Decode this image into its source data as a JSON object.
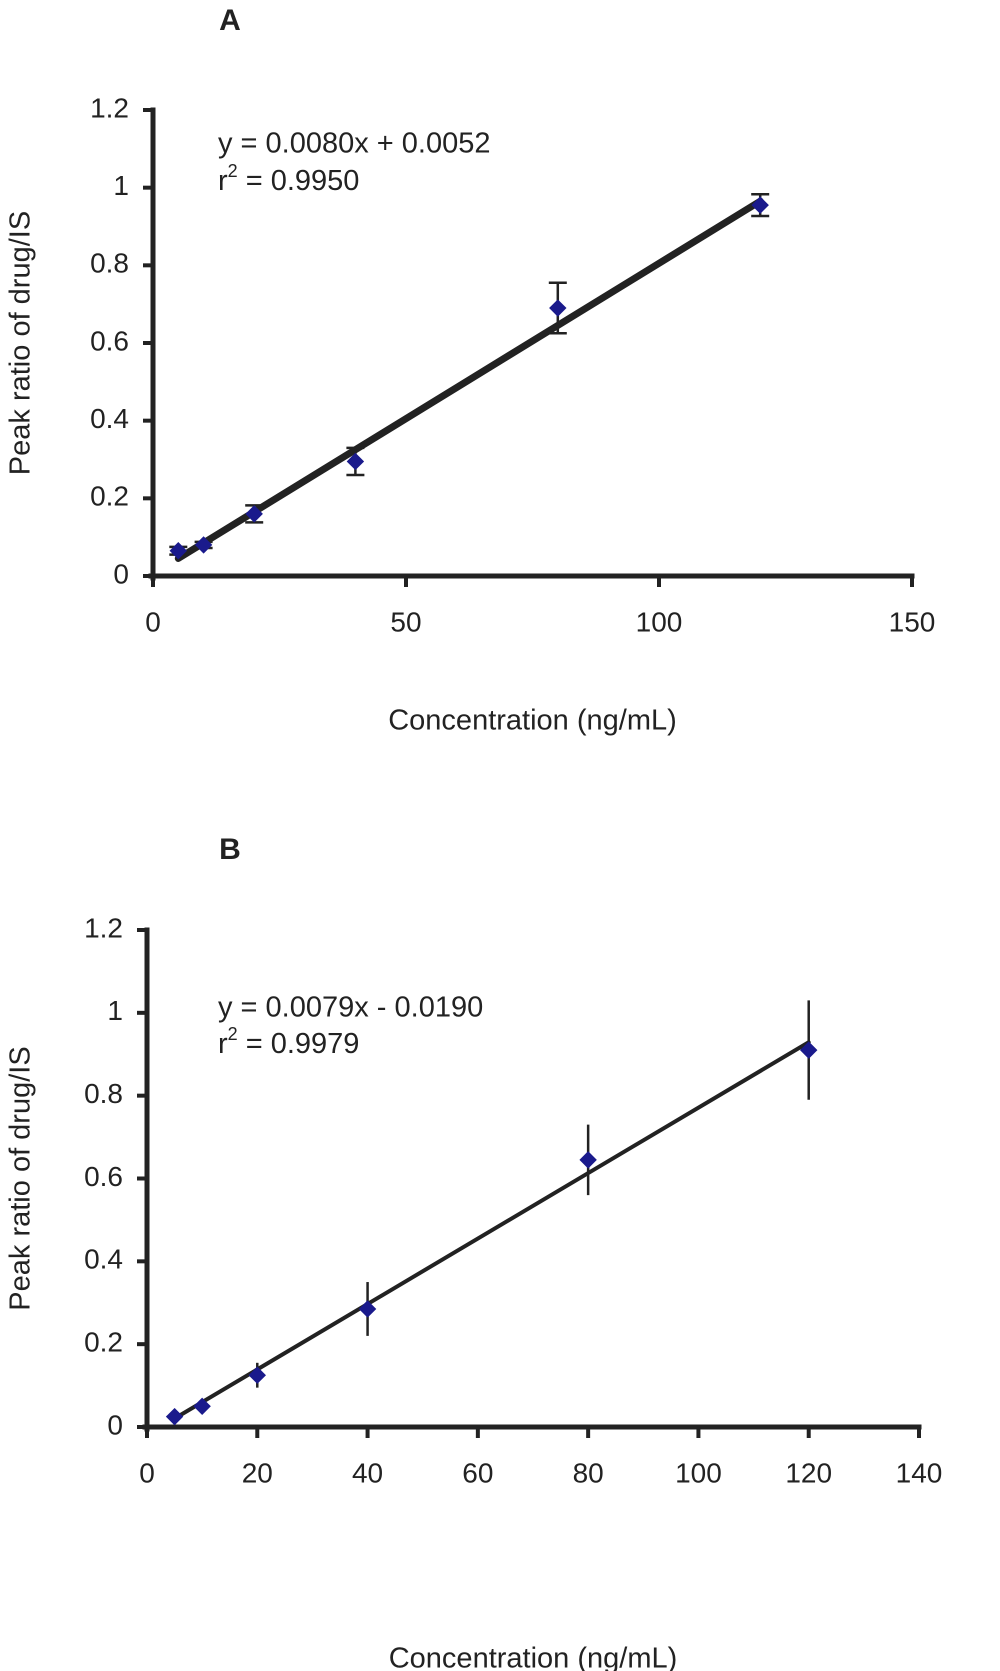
{
  "figure": {
    "background": "#ffffff",
    "axis_color": "#222222",
    "line_color": "#222222",
    "marker_color": "#1a1a8c"
  },
  "chart_data": [
    {
      "type": "scatter",
      "panel_label": "A",
      "title": "",
      "xlabel": "Concentration (ng/mL)",
      "ylabel": "Peak ratio of drug/IS",
      "xlim": [
        0,
        150
      ],
      "ylim": [
        0,
        1.2
      ],
      "x_ticks": [
        0,
        50,
        100,
        150
      ],
      "y_ticks": [
        0,
        0.2,
        0.4,
        0.6,
        0.8,
        1,
        1.2
      ],
      "x_tick_labels": [
        "0",
        "50",
        "100",
        "150"
      ],
      "y_tick_labels": [
        "0",
        "0.2",
        "0.4",
        "0.6",
        "0.8",
        "1",
        "1.2"
      ],
      "grid": false,
      "marker": "diamond",
      "series": [
        {
          "x": [
            5,
            10,
            20,
            40,
            80,
            120
          ],
          "y": [
            0.065,
            0.08,
            0.16,
            0.295,
            0.69,
            0.955
          ],
          "error": [
            0.01,
            0.008,
            0.022,
            0.035,
            0.065,
            0.028
          ]
        }
      ],
      "fit": {
        "slope": 0.008,
        "intercept": 0.0052,
        "x_range": [
          5,
          120
        ]
      },
      "annotation": {
        "equation": "y = 0.0080x + 0.0052",
        "r2_prefix": "r",
        "r2_sup": "2",
        "r2_value": " = 0.9950"
      }
    },
    {
      "type": "scatter",
      "panel_label": "B",
      "title": "",
      "xlabel": "Concentration (ng/mL)",
      "ylabel": "Peak ratio of drug/IS",
      "xlim": [
        0,
        140
      ],
      "ylim": [
        0,
        1.2
      ],
      "x_ticks": [
        0,
        20,
        40,
        60,
        80,
        100,
        120,
        140
      ],
      "y_ticks": [
        0,
        0.2,
        0.4,
        0.6,
        0.8,
        1,
        1.2
      ],
      "x_tick_labels": [
        "0",
        "20",
        "40",
        "60",
        "80",
        "100",
        "120",
        "140"
      ],
      "y_tick_labels": [
        "0",
        "0.2",
        "0.4",
        "0.6",
        "0.8",
        "1",
        "1.2"
      ],
      "grid": false,
      "marker": "diamond",
      "series": [
        {
          "x": [
            5,
            10,
            20,
            40,
            80,
            120
          ],
          "y": [
            0.025,
            0.05,
            0.125,
            0.285,
            0.645,
            0.91
          ],
          "error": [
            0.008,
            0.012,
            0.03,
            0.065,
            0.085,
            0.12
          ]
        }
      ],
      "fit": {
        "slope": 0.0079,
        "intercept": -0.019,
        "x_range": [
          5,
          120
        ]
      },
      "annotation": {
        "equation": "y = 0.0079x - 0.0190",
        "r2_prefix": "r",
        "r2_sup": "2",
        "r2_value": " = 0.9979"
      }
    }
  ]
}
